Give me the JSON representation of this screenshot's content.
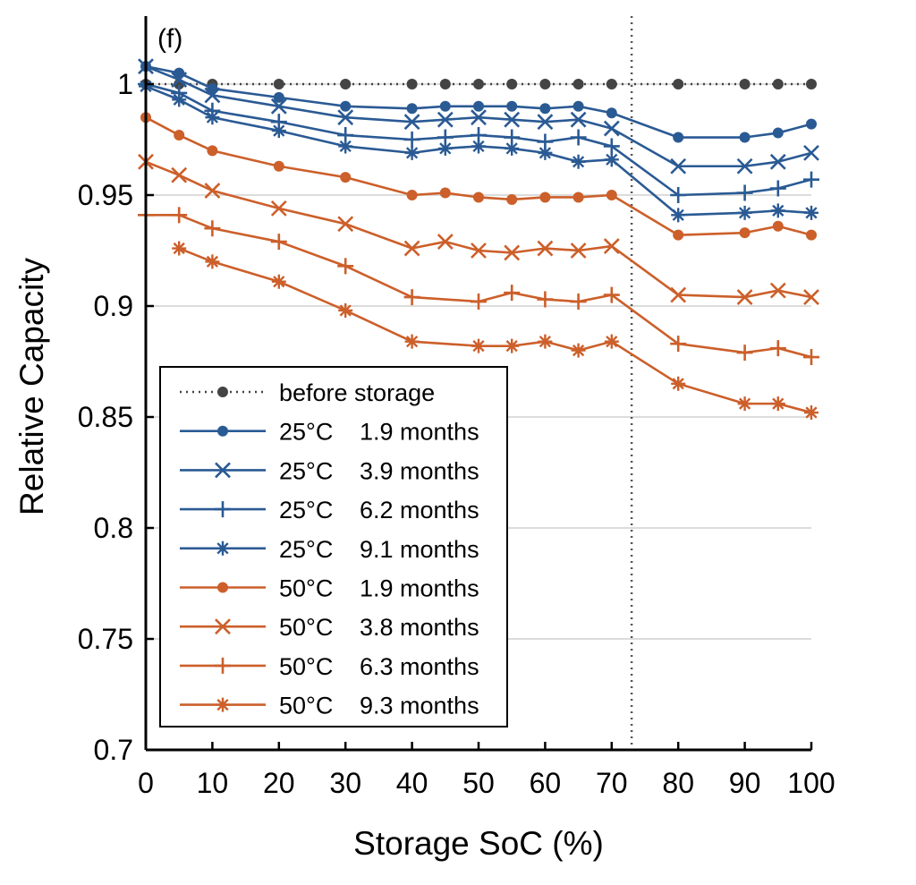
{
  "chart_data": {
    "type": "line",
    "panel_label": "(f)",
    "title": "",
    "xlabel": "Storage SoC (%)",
    "ylabel": "Relative Capacity",
    "xlim": [
      0,
      100
    ],
    "ylim": [
      0.7,
      1.03
    ],
    "xticks": [
      0,
      10,
      20,
      30,
      40,
      50,
      60,
      70,
      80,
      90,
      100
    ],
    "xtick_labels": [
      "0",
      "10",
      "20",
      "30",
      "40",
      "50",
      "60",
      "70",
      "80",
      "90",
      "100"
    ],
    "yticks": [
      0.7,
      0.75,
      0.8,
      0.85,
      0.9,
      0.95,
      1
    ],
    "ytick_labels": [
      "0.7",
      "0.75",
      "0.8",
      "0.85",
      "0.9",
      "0.95",
      "1"
    ],
    "grid": "horizontal",
    "vline": {
      "x": 73,
      "style": "dotted"
    },
    "legend_position": "bottom-left",
    "series": [
      {
        "name": "before storage",
        "color": "#444444",
        "line_style": "dotted",
        "marker": "dot",
        "x": [
          0,
          5,
          10,
          20,
          30,
          40,
          45,
          50,
          55,
          60,
          65,
          70,
          80,
          90,
          95,
          100
        ],
        "y": [
          1.0,
          1.0,
          1.0,
          1.0,
          1.0,
          1.0,
          1.0,
          1.0,
          1.0,
          1.0,
          1.0,
          1.0,
          1.0,
          1.0,
          1.0,
          1.0
        ]
      },
      {
        "name": "25°C  1.9 months",
        "label_temp": "25°C",
        "label_time": "1.9 months",
        "color": "#2a5a94",
        "line_style": "solid",
        "marker": "dot",
        "x": [
          0,
          5,
          10,
          20,
          30,
          40,
          45,
          50,
          55,
          60,
          65,
          70,
          80,
          90,
          95,
          100
        ],
        "y": [
          1.008,
          1.005,
          0.998,
          0.994,
          0.99,
          0.989,
          0.99,
          0.99,
          0.99,
          0.989,
          0.99,
          0.987,
          0.976,
          0.976,
          0.978,
          0.982
        ]
      },
      {
        "name": "25°C  3.9 months",
        "label_temp": "25°C",
        "label_time": "3.9 months",
        "color": "#2a5a94",
        "line_style": "solid",
        "marker": "x",
        "x": [
          0,
          5,
          10,
          20,
          30,
          40,
          45,
          50,
          55,
          60,
          65,
          70,
          80,
          90,
          95,
          100
        ],
        "y": [
          1.008,
          1.002,
          0.995,
          0.99,
          0.985,
          0.983,
          0.984,
          0.985,
          0.984,
          0.983,
          0.984,
          0.98,
          0.963,
          0.963,
          0.965,
          0.969
        ]
      },
      {
        "name": "25°C  6.2 months",
        "label_temp": "25°C",
        "label_time": "6.2 months",
        "color": "#2a5a94",
        "line_style": "solid",
        "marker": "plus",
        "x": [
          0,
          5,
          10,
          20,
          30,
          40,
          45,
          50,
          55,
          60,
          65,
          70,
          80,
          90,
          95,
          100
        ],
        "y": [
          1.0,
          0.996,
          0.988,
          0.983,
          0.977,
          0.975,
          0.976,
          0.977,
          0.976,
          0.974,
          0.976,
          0.972,
          0.95,
          0.951,
          0.953,
          0.957
        ]
      },
      {
        "name": "25°C  9.1 months",
        "label_temp": "25°C",
        "label_time": "9.1 months",
        "color": "#2a5a94",
        "line_style": "solid",
        "marker": "asterisk",
        "x": [
          0,
          5,
          10,
          20,
          30,
          40,
          45,
          50,
          55,
          60,
          65,
          70,
          80,
          90,
          95,
          100
        ],
        "y": [
          0.999,
          0.993,
          0.985,
          0.979,
          0.972,
          0.969,
          0.971,
          0.972,
          0.971,
          0.969,
          0.965,
          0.966,
          0.941,
          0.942,
          0.943,
          0.942
        ]
      },
      {
        "name": "50°C  1.9 months",
        "label_temp": "50°C",
        "label_time": "1.9 months",
        "color": "#cc5f2a",
        "line_style": "solid",
        "marker": "dot",
        "x": [
          0,
          5,
          10,
          20,
          30,
          40,
          45,
          50,
          55,
          60,
          65,
          70,
          80,
          90,
          95,
          100
        ],
        "y": [
          0.985,
          0.977,
          0.97,
          0.963,
          0.958,
          0.95,
          0.951,
          0.949,
          0.948,
          0.949,
          0.949,
          0.95,
          0.932,
          0.933,
          0.936,
          0.932
        ]
      },
      {
        "name": "50°C  3.8 months",
        "label_temp": "50°C",
        "label_time": "3.8 months",
        "color": "#cc5f2a",
        "line_style": "solid",
        "marker": "x",
        "x": [
          0,
          5,
          10,
          20,
          30,
          40,
          45,
          50,
          55,
          60,
          65,
          70,
          80,
          90,
          95,
          100
        ],
        "y": [
          0.965,
          0.959,
          0.952,
          0.944,
          0.937,
          0.926,
          0.929,
          0.925,
          0.924,
          0.926,
          0.925,
          0.927,
          0.905,
          0.904,
          0.907,
          0.904
        ]
      },
      {
        "name": "50°C  6.3 months",
        "label_temp": "50°C",
        "label_time": "6.3 months",
        "color": "#cc5f2a",
        "line_style": "solid",
        "marker": "plus",
        "x": [
          0,
          5,
          10,
          20,
          30,
          40,
          50,
          55,
          60,
          65,
          70,
          80,
          90,
          95,
          100
        ],
        "y": [
          0.941,
          0.941,
          0.935,
          0.929,
          0.918,
          0.904,
          0.902,
          0.906,
          0.903,
          0.902,
          0.905,
          0.883,
          0.879,
          0.881,
          0.877
        ]
      },
      {
        "name": "50°C  9.3 months",
        "label_temp": "50°C",
        "label_time": "9.3 months",
        "color": "#cc5f2a",
        "line_style": "solid",
        "marker": "asterisk",
        "x": [
          5,
          10,
          20,
          30,
          40,
          50,
          55,
          60,
          65,
          70,
          80,
          90,
          95,
          100
        ],
        "y": [
          0.926,
          0.92,
          0.911,
          0.898,
          0.884,
          0.882,
          0.882,
          0.884,
          0.88,
          0.884,
          0.865,
          0.856,
          0.856,
          0.852
        ]
      }
    ]
  }
}
